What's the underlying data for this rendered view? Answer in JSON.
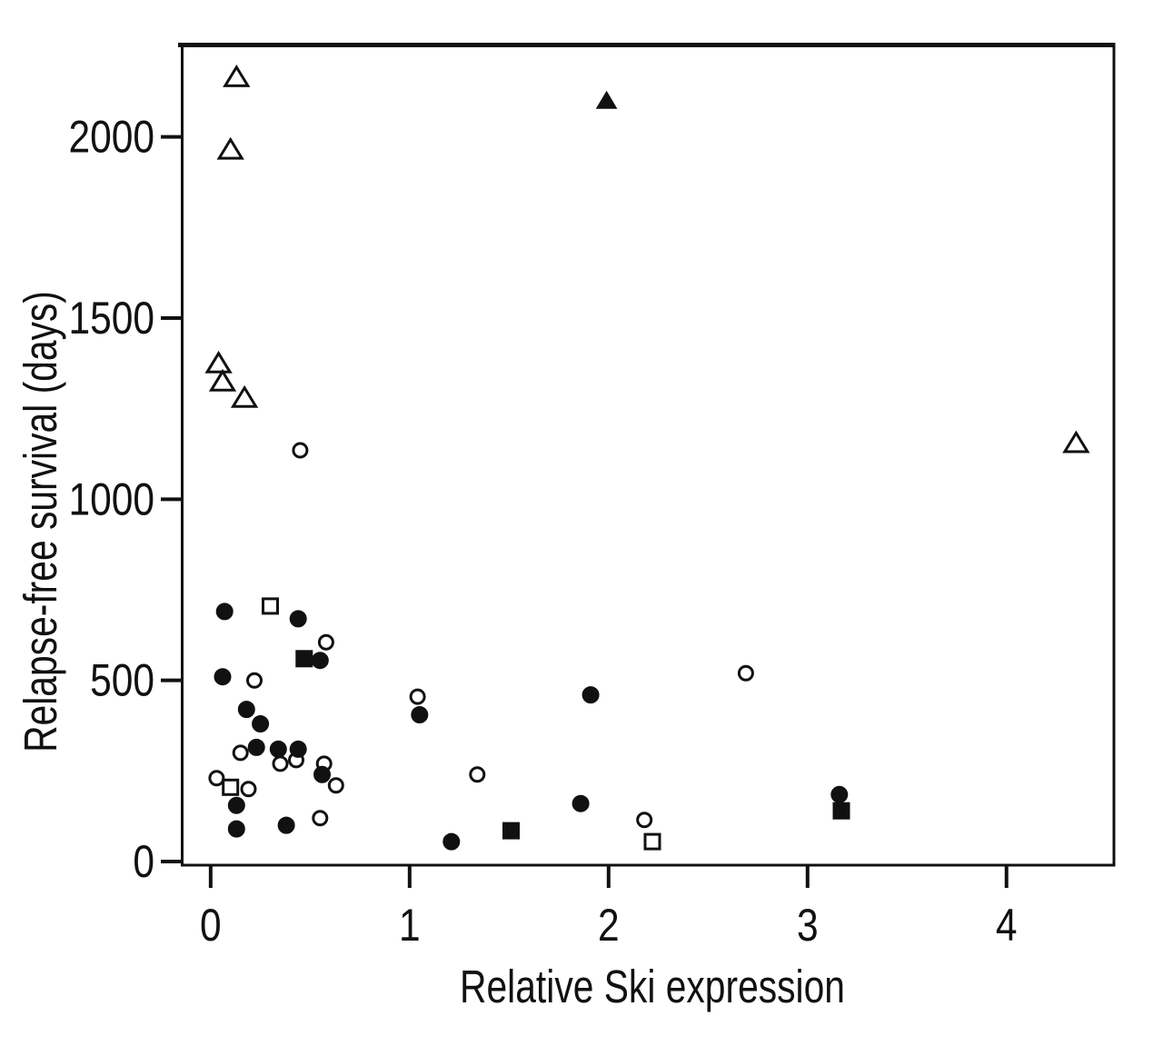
{
  "chart_data": {
    "type": "scatter",
    "title": "",
    "xlabel": "Relative Ski expression",
    "ylabel": "Relapse-free survival (days)",
    "xlim": [
      -0.15,
      4.54
    ],
    "ylim": [
      -10,
      2260
    ],
    "x_ticks": [
      0,
      1,
      2,
      3,
      4
    ],
    "y_ticks": [
      0,
      500,
      1000,
      1500,
      2000
    ],
    "grid": false,
    "legend_position": "none",
    "colors": {
      "marker": "#111111",
      "background": "#ffffff"
    },
    "series": [
      {
        "name": "open-triangle-group",
        "marker": "triangle-open",
        "points": [
          [
            0.13,
            2165
          ],
          [
            0.1,
            1965
          ],
          [
            0.04,
            1375
          ],
          [
            0.06,
            1325
          ],
          [
            0.17,
            1280
          ],
          [
            4.35,
            1155
          ]
        ]
      },
      {
        "name": "filled-triangle-group",
        "marker": "triangle-filled",
        "points": [
          [
            1.99,
            2100
          ]
        ]
      },
      {
        "name": "open-circle-group",
        "marker": "circle-open",
        "points": [
          [
            0.45,
            1135
          ],
          [
            0.58,
            605
          ],
          [
            0.22,
            500
          ],
          [
            1.04,
            455
          ],
          [
            2.69,
            520
          ],
          [
            0.15,
            300
          ],
          [
            0.35,
            270
          ],
          [
            0.43,
            280
          ],
          [
            0.57,
            270
          ],
          [
            0.63,
            210
          ],
          [
            0.03,
            230
          ],
          [
            0.19,
            200
          ],
          [
            1.34,
            240
          ],
          [
            2.18,
            115
          ],
          [
            0.55,
            120
          ]
        ]
      },
      {
        "name": "filled-circle-group",
        "marker": "circle-filled",
        "points": [
          [
            0.07,
            690
          ],
          [
            0.44,
            670
          ],
          [
            0.06,
            510
          ],
          [
            0.18,
            420
          ],
          [
            0.25,
            380
          ],
          [
            0.23,
            315
          ],
          [
            0.34,
            310
          ],
          [
            0.44,
            310
          ],
          [
            0.56,
            240
          ],
          [
            0.13,
            155
          ],
          [
            0.13,
            90
          ],
          [
            0.38,
            100
          ],
          [
            0.55,
            555
          ],
          [
            1.05,
            405
          ],
          [
            1.91,
            460
          ],
          [
            1.86,
            160
          ],
          [
            1.21,
            55
          ],
          [
            3.16,
            185
          ]
        ]
      },
      {
        "name": "open-square-group",
        "marker": "square-open",
        "points": [
          [
            0.3,
            705
          ],
          [
            0.1,
            205
          ],
          [
            2.22,
            55
          ]
        ]
      },
      {
        "name": "filled-square-group",
        "marker": "square-filled",
        "points": [
          [
            0.47,
            560
          ],
          [
            1.51,
            85
          ],
          [
            3.17,
            140
          ]
        ]
      }
    ]
  }
}
